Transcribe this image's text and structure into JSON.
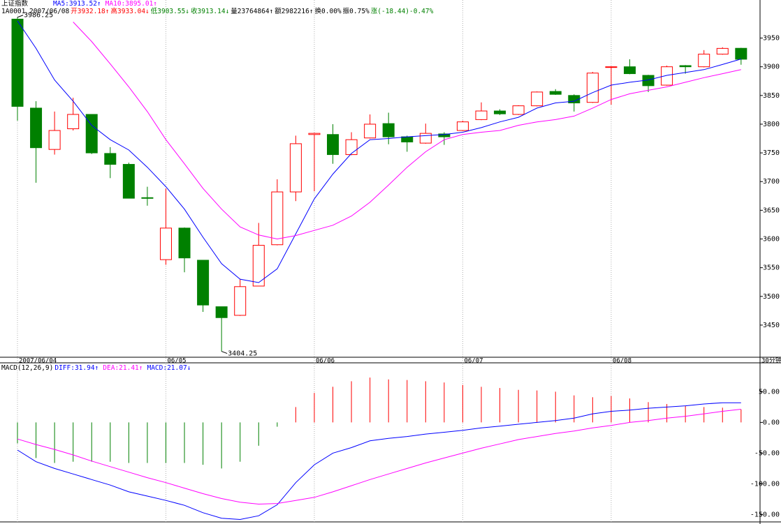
{
  "chart_data": [
    {
      "type": "candlestick",
      "title": "上证指数",
      "period": "30分钟",
      "header": [
        {
          "text": "1A0001 2007/06/08",
          "color": "#000000"
        },
        {
          "text": "开3932.18↑",
          "color": "#ff0000"
        },
        {
          "text": "高3933.04↓",
          "color": "#ff0000"
        },
        {
          "text": "低3903.55↓",
          "color": "#008000"
        },
        {
          "text": "收3913.14↓",
          "color": "#008000"
        },
        {
          "text": "量23764864↑",
          "color": "#000000"
        },
        {
          "text": "额2982216↑",
          "color": "#000000"
        },
        {
          "text": "换0.00%",
          "color": "#000000"
        },
        {
          "text": "振0.75%",
          "color": "#000000"
        },
        {
          "text": "涨(-18.44)-0.47%",
          "color": "#008000"
        }
      ],
      "categories": [
        "2007/06/04",
        null,
        null,
        null,
        null,
        null,
        null,
        null,
        "06/05",
        null,
        null,
        null,
        null,
        null,
        null,
        null,
        "06/06",
        null,
        null,
        null,
        null,
        null,
        null,
        null,
        "06/07",
        null,
        null,
        null,
        null,
        null,
        null,
        null,
        "06/08",
        null,
        null,
        null,
        null,
        null,
        null,
        null
      ],
      "open": [
        3983,
        3828,
        3756,
        3792,
        3817,
        3749,
        3730,
        3672,
        3564,
        3619,
        3563,
        3482,
        3467,
        3518,
        3590,
        3682,
        3782,
        3782,
        3747,
        3776,
        3801,
        3778,
        3767,
        3783,
        3789,
        3808,
        3823,
        3817,
        3832,
        3857,
        3850,
        3838,
        3899,
        3900,
        3885,
        3868,
        3902,
        3900,
        3922,
        3932.18
      ],
      "high": [
        3986.25,
        3840,
        3822,
        3846,
        3817,
        3760,
        3733,
        3691,
        3688,
        3620,
        3563,
        3482,
        3530,
        3628,
        3704,
        3780,
        3785,
        3800,
        3786,
        3817,
        3820,
        3780,
        3801,
        3786,
        3806,
        3838,
        3826,
        3833,
        3857,
        3861,
        3852,
        3891,
        3901,
        3913,
        3886,
        3902,
        3903,
        3929,
        3934,
        3933.04
      ],
      "low": [
        3806,
        3698,
        3747,
        3789,
        3748,
        3706,
        3671,
        3658,
        3555,
        3542,
        3473,
        3404.25,
        3466,
        3518,
        3589,
        3666,
        3683,
        3731,
        3746,
        3775,
        3765,
        3752,
        3766,
        3764,
        3788,
        3807,
        3816,
        3816,
        3831,
        3851,
        3822,
        3837,
        3834,
        3887,
        3856,
        3867,
        3888,
        3899,
        3921,
        3903.55
      ],
      "close": [
        3831,
        3759,
        3789,
        3817,
        3750,
        3730,
        3671,
        3671,
        3619,
        3567,
        3485,
        3463,
        3517,
        3589,
        3682,
        3766,
        3784,
        3747,
        3773,
        3800,
        3778,
        3769,
        3784,
        3778,
        3804,
        3823,
        3818,
        3832,
        3856,
        3852,
        3837,
        3889,
        3900,
        3888,
        3867,
        3900,
        3900,
        3922,
        3932,
        3913.14
      ],
      "up_color": "#ff0000",
      "down_color": "#008000",
      "annotations": [
        {
          "text": "3986.25",
          "index": 0
        },
        {
          "text": "3404.25",
          "index": 11
        }
      ],
      "series": [
        {
          "name": "MA5:3913.52↑",
          "color": "#0000ff",
          "values": [
            3980,
            3932,
            3877,
            3840,
            3798,
            3773,
            3755,
            3725,
            3691,
            3652,
            3603,
            3557,
            3530,
            3524,
            3548,
            3609,
            3670,
            3713,
            3749,
            3773,
            3775,
            3778,
            3780,
            3782,
            3786,
            3794,
            3804,
            3812,
            3828,
            3837,
            3840,
            3855,
            3868,
            3873,
            3877,
            3885,
            3890,
            3895,
            3904,
            3913.52
          ]
        },
        {
          "name": "MA10:3895.01↑",
          "color": "#ff00ff",
          "values": [
            null,
            null,
            null,
            3978,
            3944,
            3905,
            3865,
            3822,
            3773,
            3731,
            3688,
            3652,
            3621,
            3607,
            3600,
            3606,
            3615,
            3624,
            3640,
            3664,
            3694,
            3725,
            3752,
            3773,
            3782,
            3786,
            3789,
            3798,
            3804,
            3808,
            3814,
            3828,
            3843,
            3853,
            3859,
            3865,
            3873,
            3881,
            3888,
            3895.01
          ]
        }
      ],
      "ylim": [
        3394,
        3992
      ],
      "yticks": [
        {
          "value": 3450,
          "label": "3450.00"
        },
        {
          "value": 3500,
          "label": "3500.00"
        },
        {
          "value": 3550,
          "label": "3550.00"
        },
        {
          "value": 3600,
          "label": "3600.00"
        },
        {
          "value": 3650,
          "label": "3650.00"
        },
        {
          "value": 3700,
          "label": "3700.00"
        },
        {
          "value": 3750,
          "label": "3750.00"
        },
        {
          "value": 3800,
          "label": "3800.00"
        },
        {
          "value": 3850,
          "label": "3850.00"
        },
        {
          "value": 3900,
          "label": "3900.00"
        },
        {
          "value": 3950,
          "label": "3950.00"
        }
      ]
    },
    {
      "type": "macd",
      "title": "MACD(12,26,9)",
      "series": [
        {
          "name": "DIFF:31.94↑",
          "color": "#0000ff",
          "kind": "line",
          "values": [
            -45,
            -64,
            -75,
            -84,
            -93,
            -102,
            -113,
            -120,
            -127,
            -135,
            -147,
            -156,
            -158,
            -152,
            -134,
            -98,
            -69,
            -50,
            -41,
            -30,
            -26,
            -23,
            -19,
            -16,
            -13,
            -9,
            -6,
            -3,
            0,
            3,
            7,
            14,
            18,
            20,
            23,
            25,
            27,
            30,
            32,
            31.94
          ]
        },
        {
          "name": "DEA:21.41↑",
          "color": "#ff00ff",
          "kind": "line",
          "values": [
            -27,
            -36,
            -44,
            -53,
            -63,
            -72,
            -81,
            -90,
            -98,
            -107,
            -116,
            -124,
            -130,
            -133,
            -132,
            -127,
            -122,
            -113,
            -103,
            -93,
            -84,
            -75,
            -66,
            -58,
            -50,
            -42,
            -35,
            -28,
            -23,
            -18,
            -14,
            -9,
            -5,
            0,
            3,
            7,
            10,
            14,
            18,
            21.41
          ]
        },
        {
          "name": "MACD:21.07↓",
          "color": "#0000ff",
          "kind": "bar",
          "up_color": "#ff0000",
          "down_color": "#008000",
          "values": [
            -34,
            -58,
            -66,
            -64,
            -64,
            -64,
            -66,
            -66,
            -66,
            -66,
            -69,
            -75,
            -64,
            -38,
            -7,
            25,
            48,
            58,
            67,
            73,
            70,
            69,
            67,
            65,
            61,
            58,
            56,
            53,
            52,
            50,
            44,
            41,
            43,
            39,
            33,
            30,
            27,
            25,
            24,
            21.07
          ]
        }
      ],
      "ylim": [
        -162,
        97
      ],
      "yticks": [
        {
          "value": -150,
          "label": "-150.00"
        },
        {
          "value": -100,
          "label": "-100.00"
        },
        {
          "value": -50,
          "label": "-50.00"
        },
        {
          "value": 0,
          "label": "0.00"
        },
        {
          "value": 50,
          "label": "50.00"
        }
      ]
    }
  ]
}
